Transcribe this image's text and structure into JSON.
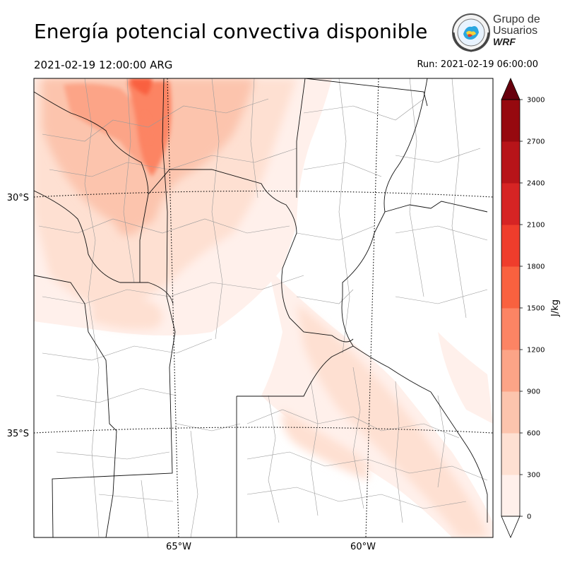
{
  "header": {
    "title": "Energía potencial convectiva disponible",
    "valid_time": "2021-02-19 12:00:00 ARG",
    "run_time": "Run: 2021-02-19 06:00:00"
  },
  "logo": {
    "line1": "Grupo de",
    "line2": "Usuarios",
    "line3": "WRF"
  },
  "map": {
    "lat_labels": [
      "30°S",
      "35°S"
    ],
    "lon_labels": [
      "65°W",
      "60°W"
    ]
  },
  "colorbar": {
    "unit_label": "J/kg",
    "ticks": [
      "0",
      "300",
      "600",
      "900",
      "1200",
      "1500",
      "1800",
      "2100",
      "2400",
      "2700",
      "3000"
    ],
    "colors": [
      "#fff0eb",
      "#fee0d2",
      "#fcc4ad",
      "#fca487",
      "#fc8464",
      "#f9613f",
      "#ef3d2c",
      "#d62424",
      "#b71419",
      "#96090f",
      "#720008"
    ],
    "over_color": "#67000d",
    "under_color": "#ffffff"
  }
}
